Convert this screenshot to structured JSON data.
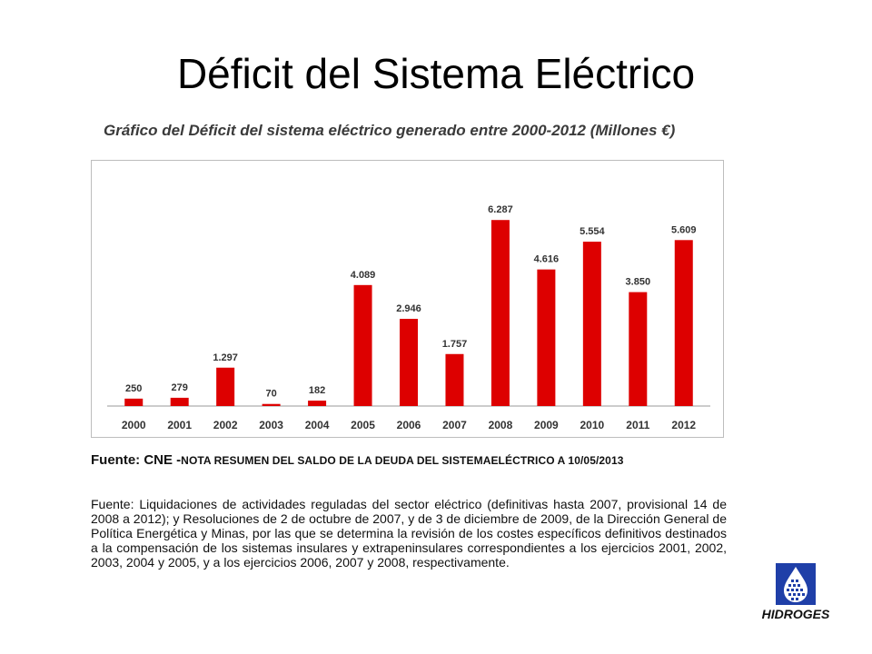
{
  "slide": {
    "title": "Déficit del Sistema Eléctrico"
  },
  "chart_data": {
    "type": "bar",
    "title": "Gráfico del Déficit del sistema eléctrico generado entre 2000-2012 (Millones €)",
    "categories": [
      "2000",
      "2001",
      "2002",
      "2003",
      "2004",
      "2005",
      "2006",
      "2007",
      "2008",
      "2009",
      "2010",
      "2011",
      "2012"
    ],
    "values": [
      250,
      279,
      1297,
      70,
      182,
      4089,
      2946,
      1757,
      6287,
      4616,
      5554,
      3850,
      5609
    ],
    "value_labels": [
      "250",
      "279",
      "1.297",
      "70",
      "182",
      "4.089",
      "2.946",
      "1.757",
      "6.287",
      "4.616",
      "5.554",
      "3.850",
      "5.609"
    ],
    "bar_color": "#dd0000",
    "ylim": [
      0,
      7000
    ],
    "grid": false,
    "xlabel": "",
    "ylabel": ""
  },
  "source": {
    "label": "Fuente: CNE -",
    "note": "NOTA RESUMEN DEL SALDO DE LA DEUDA DEL SISTEMAELÉCTRICO A 10/05/2013",
    "paragraph": "Fuente: Liquidaciones de actividades reguladas del sector eléctrico (definitivas hasta 2007, provisional 14 de 2008 a 2012); y Resoluciones de 2 de octubre de 2007, y de 3 de diciembre de 2009, de la Dirección General de Política Energética y Minas, por las que se determina la revisión de los costes específicos definitivos destinados a la compensación de los sistemas insulares y extrapeninsulares correspondientes a los ejercicios 2001, 2002, 2003, 2004 y 2005, y a los ejercicios 2006, 2007 y 2008, respectivamente."
  },
  "logo": {
    "name": "HIDROGES",
    "color": "#1f3fa8"
  }
}
